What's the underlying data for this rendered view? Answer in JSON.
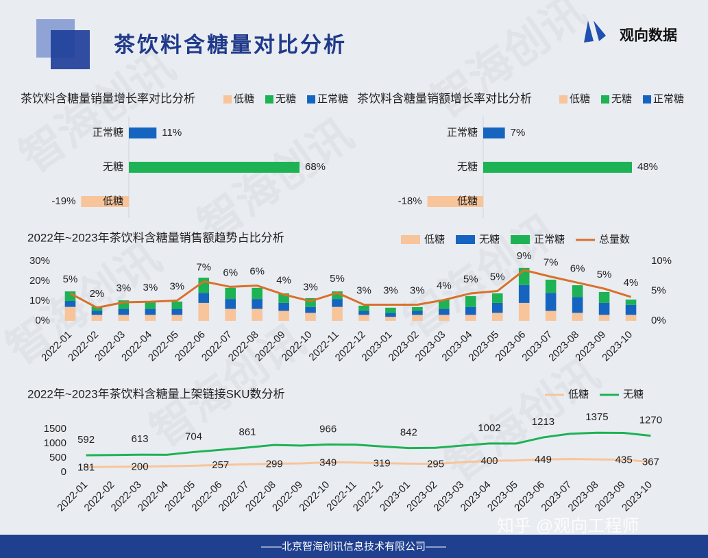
{
  "header": {
    "title": "茶饮料含糖量对比分析",
    "brand": "观向数据"
  },
  "watermark": {
    "brand": "智海创讯",
    "author": "知乎 @观向工程师"
  },
  "footer": "——北京智海创讯信息技术有限公司——",
  "chart_data": [
    {
      "type": "hbar",
      "title": "茶饮料含糖量销量增长率对比分析",
      "categories": [
        "正常糖",
        "无糖",
        "低糖"
      ],
      "series": [
        {
          "name": "低糖",
          "color": "#f8c49a",
          "values": [
            null,
            null,
            -19
          ],
          "value_labels": [
            null,
            null,
            "-19%"
          ]
        },
        {
          "name": "无糖",
          "color": "#1db254",
          "values": [
            null,
            68,
            null
          ],
          "value_labels": [
            null,
            "68%",
            null
          ]
        },
        {
          "name": "正常糖",
          "color": "#1565c0",
          "values": [
            11,
            null,
            null
          ],
          "value_labels": [
            "11%",
            null,
            null
          ]
        }
      ]
    },
    {
      "type": "hbar",
      "title": "茶饮料含糖量销额增长率对比分析",
      "categories": [
        "正常糖",
        "无糖",
        "低糖"
      ],
      "series": [
        {
          "name": "低糖",
          "color": "#f8c49a",
          "values": [
            null,
            null,
            -18
          ],
          "value_labels": [
            null,
            null,
            "-18%"
          ]
        },
        {
          "name": "无糖",
          "color": "#1db254",
          "values": [
            null,
            48,
            null
          ],
          "value_labels": [
            null,
            "48%",
            null
          ]
        },
        {
          "name": "正常糖",
          "color": "#1565c0",
          "values": [
            7,
            null,
            null
          ],
          "value_labels": [
            "7%",
            null,
            null
          ]
        }
      ]
    },
    {
      "type": "combo",
      "title": "2022年~2023年茶饮料含糖量销售额趋势占比分析",
      "categories": [
        "2022-01",
        "2022-02",
        "2022-03",
        "2022-04",
        "2022-05",
        "2022-06",
        "2022-07",
        "2022-08",
        "2022-09",
        "2022-10",
        "2022-11",
        "2022-12",
        "2023-01",
        "2023-02",
        "2023-03",
        "2023-04",
        "2023-05",
        "2023-06",
        "2023-07",
        "2023-08",
        "2023-09",
        "2023-10"
      ],
      "ylim": [
        0,
        30
      ],
      "yticks": [
        {
          "value": 0,
          "label": "0%"
        },
        {
          "value": 10,
          "label": "10%"
        },
        {
          "value": 20,
          "label": "20%"
        },
        {
          "value": 30,
          "label": "30%"
        }
      ],
      "y2lim": [
        0,
        10
      ],
      "y2ticks": [
        {
          "value": 0,
          "label": "0%"
        },
        {
          "value": 5,
          "label": "5%"
        },
        {
          "value": 10,
          "label": "10%"
        }
      ],
      "series": [
        {
          "name": "低糖",
          "color": "#f8c49a",
          "values": [
            7,
            3,
            3,
            3,
            3,
            9,
            6,
            6,
            5,
            4,
            7,
            3,
            2,
            3,
            3,
            3,
            4,
            9,
            5,
            4,
            3,
            3
          ]
        },
        {
          "name": "无糖",
          "color": "#1565c0",
          "values": [
            3,
            2,
            3,
            3,
            3,
            5,
            5,
            5,
            4,
            3,
            4,
            2,
            2,
            2,
            3,
            4,
            5,
            9,
            9,
            8,
            6,
            5
          ]
        },
        {
          "name": "正常糖",
          "color": "#1db254",
          "values": [
            4.8,
            2.2,
            4.3,
            3.3,
            3.7,
            7.7,
            5.6,
            5.6,
            4.8,
            4.4,
            3.8,
            2.6,
            2.6,
            1.9,
            4.7,
            5.4,
            4.8,
            8.6,
            6.7,
            5.9,
            5.5,
            2.7
          ]
        },
        {
          "name": "总量数",
          "color": "#d9702a",
          "axis": "y2",
          "values": [
            4.6,
            2.2,
            3.1,
            3.2,
            3.4,
            6.6,
            5.7,
            5.9,
            4.4,
            3.3,
            4.7,
            2.7,
            2.7,
            2.7,
            3.5,
            4.6,
            5.0,
            8.5,
            7.4,
            6.4,
            5.4,
            4.0
          ],
          "value_labels": [
            "5%",
            "2%",
            "3%",
            "3%",
            "3%",
            "7%",
            "6%",
            "6%",
            "4%",
            "3%",
            "5%",
            "3%",
            "3%",
            "3%",
            "4%",
            "5%",
            "5%",
            "9%",
            "7%",
            "6%",
            "5%",
            "4%"
          ]
        }
      ]
    },
    {
      "type": "line",
      "title": "2022年~2023年茶饮料含糖量上架链接SKU数分析",
      "categories": [
        "2022-01",
        "2022-02",
        "2022-03",
        "2022-04",
        "2022-05",
        "2022-06",
        "2022-07",
        "2022-08",
        "2022-09",
        "2022-10",
        "2022-11",
        "2022-12",
        "2023-01",
        "2023-02",
        "2023-03",
        "2023-04",
        "2023-05",
        "2023-06",
        "2023-07",
        "2023-08",
        "2023-09",
        "2023-10"
      ],
      "ylim": [
        0,
        1500
      ],
      "yticks": [
        0,
        500,
        1000,
        1500
      ],
      "series": [
        {
          "name": "低糖",
          "color": "#f8c49a",
          "values": [
            181,
            190,
            200,
            210,
            230,
            257,
            280,
            299,
            310,
            349,
            340,
            319,
            300,
            295,
            350,
            400,
            410,
            449,
            460,
            450,
            435,
            367
          ],
          "value_labels": [
            "181",
            null,
            "200",
            null,
            null,
            "257",
            null,
            "299",
            null,
            "349",
            null,
            "319",
            null,
            "295",
            null,
            "400",
            null,
            "449",
            null,
            null,
            "435",
            "367"
          ]
        },
        {
          "name": "无糖",
          "color": "#1db254",
          "values": [
            592,
            600,
            613,
            610,
            704,
            780,
            861,
            950,
            930,
            966,
            960,
            900,
            842,
            850,
            930,
            1002,
            1000,
            1213,
            1340,
            1375,
            1370,
            1270
          ],
          "value_labels": [
            "592",
            null,
            "613",
            null,
            "704",
            null,
            "861",
            null,
            null,
            "966",
            null,
            null,
            "842",
            null,
            null,
            "1002",
            null,
            "1213",
            null,
            "1375",
            null,
            "1270"
          ]
        }
      ]
    }
  ]
}
